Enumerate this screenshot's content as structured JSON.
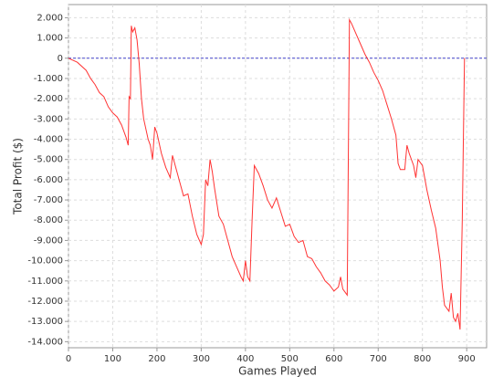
{
  "chart_data": {
    "type": "line",
    "x_label": "Games Played",
    "y_label": "Total Profit ($)",
    "x": [
      0,
      20,
      40,
      50,
      60,
      70,
      80,
      90,
      100,
      110,
      120,
      130,
      135,
      137,
      140,
      142,
      145,
      150,
      155,
      160,
      165,
      170,
      180,
      185,
      190,
      195,
      200,
      210,
      220,
      230,
      235,
      240,
      250,
      260,
      270,
      280,
      290,
      300,
      305,
      310,
      315,
      320,
      325,
      330,
      340,
      350,
      360,
      370,
      380,
      390,
      395,
      400,
      405,
      410,
      415,
      420,
      430,
      440,
      450,
      460,
      470,
      480,
      490,
      500,
      510,
      520,
      530,
      540,
      550,
      560,
      570,
      580,
      590,
      600,
      610,
      615,
      620,
      630,
      635,
      640,
      650,
      660,
      670,
      680,
      690,
      700,
      710,
      720,
      730,
      740,
      745,
      750,
      760,
      765,
      770,
      780,
      785,
      790,
      800,
      810,
      820,
      830,
      840,
      845,
      850,
      860,
      865,
      870,
      875,
      880,
      885,
      890,
      895
    ],
    "series": [
      {
        "name": "Total Profit",
        "color": "#ff3333",
        "values": [
          0,
          -200,
          -600,
          -1000,
          -1300,
          -1700,
          -1900,
          -2400,
          -2700,
          -2900,
          -3300,
          -3900,
          -4300,
          -1900,
          -2000,
          1600,
          1300,
          1500,
          900,
          -300,
          -2000,
          -3000,
          -4000,
          -4300,
          -5000,
          -3400,
          -3700,
          -4700,
          -5400,
          -5900,
          -4800,
          -5200,
          -6000,
          -6800,
          -6700,
          -7800,
          -8700,
          -9200,
          -8700,
          -6000,
          -6300,
          -5000,
          -5600,
          -6400,
          -7800,
          -8200,
          -9000,
          -9800,
          -10300,
          -10800,
          -11000,
          -10000,
          -10800,
          -11000,
          -8000,
          -5300,
          -5700,
          -6300,
          -7000,
          -7400,
          -6900,
          -7600,
          -8300,
          -8200,
          -8800,
          -9100,
          -9000,
          -9800,
          -9900,
          -10300,
          -10600,
          -11000,
          -11200,
          -11500,
          -11300,
          -10800,
          -11400,
          -11700,
          1900,
          1700,
          1200,
          700,
          200,
          -200,
          -700,
          -1100,
          -1600,
          -2300,
          -3000,
          -3800,
          -5200,
          -5500,
          -5500,
          -4300,
          -4700,
          -5300,
          -5900,
          -5000,
          -5300,
          -6500,
          -7500,
          -8400,
          -10000,
          -11300,
          -12200,
          -12500,
          -11600,
          -12800,
          -13000,
          -12600,
          -13400,
          -8000,
          0
        ]
      }
    ],
    "xlim": [
      0,
      945
    ],
    "ylim": [
      -14300,
      2650
    ],
    "xticks": [
      0,
      100,
      200,
      300,
      400,
      500,
      600,
      700,
      800,
      900
    ],
    "yticks": [
      {
        "value": 2000,
        "label": "2.000"
      },
      {
        "value": 1000,
        "label": "1.000"
      },
      0,
      {
        "value": -1000,
        "label": "-1.000"
      },
      {
        "value": -2000,
        "label": "-2.000"
      },
      {
        "value": -3000,
        "label": "-3.000"
      },
      {
        "value": -4000,
        "label": "-4.000"
      },
      {
        "value": -5000,
        "label": "-5.000"
      },
      {
        "value": -6000,
        "label": "-6.000"
      },
      {
        "value": -7000,
        "label": "-7.000"
      },
      {
        "value": -8000,
        "label": "-8.000"
      },
      {
        "value": -9000,
        "label": "-9.000"
      },
      {
        "value": -10000,
        "label": "-10.000"
      },
      {
        "value": -11000,
        "label": "-11.000"
      },
      {
        "value": -12000,
        "label": "-12.000"
      },
      {
        "value": -13000,
        "label": "-13.000"
      },
      {
        "value": -14000,
        "label": "-14.000"
      }
    ],
    "grid": true,
    "zero_line_color": "#4444cc"
  }
}
